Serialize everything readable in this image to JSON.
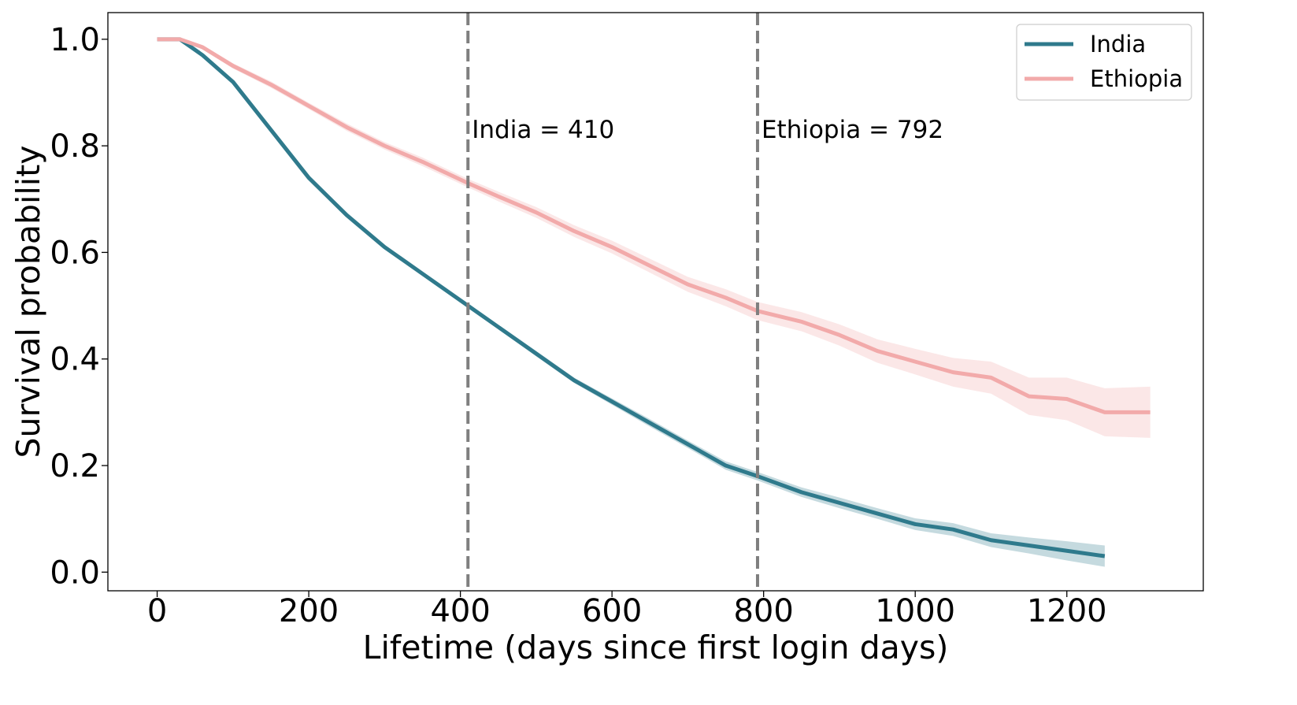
{
  "chart_data": {
    "type": "line",
    "title": "",
    "xlabel": "Lifetime (days since first login days)",
    "ylabel": "Survival probability",
    "xlim": [
      -65,
      1380
    ],
    "ylim": [
      -0.035,
      1.05
    ],
    "xticks": [
      0,
      200,
      400,
      600,
      800,
      1000,
      1200
    ],
    "yticks": [
      0.0,
      0.2,
      0.4,
      0.6,
      0.8,
      1.0
    ],
    "xtick_labels": [
      "0",
      "200",
      "400",
      "600",
      "800",
      "1000",
      "1200"
    ],
    "ytick_labels": [
      "0.0",
      "0.2",
      "0.4",
      "0.6",
      "0.8",
      "1.0"
    ],
    "grid": false,
    "legend_position": "top-right",
    "series": [
      {
        "name": "India",
        "color": "#2f7a8c",
        "band_color": "#2f7a8c",
        "x": [
          0,
          30,
          60,
          100,
          150,
          200,
          250,
          300,
          350,
          410,
          450,
          500,
          550,
          600,
          650,
          700,
          750,
          792,
          850,
          900,
          950,
          1000,
          1050,
          1100,
          1150,
          1200,
          1250
        ],
        "y": [
          1.0,
          1.0,
          0.97,
          0.92,
          0.83,
          0.74,
          0.67,
          0.61,
          0.56,
          0.5,
          0.46,
          0.41,
          0.36,
          0.32,
          0.28,
          0.24,
          0.2,
          0.18,
          0.15,
          0.13,
          0.11,
          0.09,
          0.08,
          0.06,
          0.05,
          0.04,
          0.03
        ],
        "ci_width": [
          0,
          0,
          0.003,
          0.004,
          0.004,
          0.004,
          0.004,
          0.004,
          0.004,
          0.004,
          0.004,
          0.005,
          0.005,
          0.006,
          0.007,
          0.007,
          0.008,
          0.008,
          0.009,
          0.01,
          0.01,
          0.011,
          0.012,
          0.013,
          0.015,
          0.018,
          0.02
        ]
      },
      {
        "name": "Ethiopia",
        "color": "#f2aaaa",
        "band_color": "#f2aaaa",
        "x": [
          0,
          30,
          60,
          100,
          150,
          200,
          250,
          300,
          350,
          410,
          450,
          500,
          550,
          600,
          650,
          700,
          750,
          792,
          850,
          900,
          950,
          1000,
          1050,
          1100,
          1150,
          1200,
          1250,
          1310
        ],
        "y": [
          1.0,
          1.0,
          0.985,
          0.95,
          0.915,
          0.875,
          0.835,
          0.8,
          0.77,
          0.73,
          0.705,
          0.675,
          0.64,
          0.61,
          0.575,
          0.54,
          0.515,
          0.49,
          0.47,
          0.445,
          0.415,
          0.395,
          0.375,
          0.365,
          0.33,
          0.325,
          0.3,
          0.3
        ],
        "ci_width": [
          0,
          0,
          0.004,
          0.005,
          0.006,
          0.006,
          0.007,
          0.007,
          0.008,
          0.008,
          0.009,
          0.01,
          0.011,
          0.012,
          0.013,
          0.014,
          0.016,
          0.017,
          0.018,
          0.02,
          0.022,
          0.024,
          0.027,
          0.03,
          0.035,
          0.04,
          0.045,
          0.048
        ]
      }
    ],
    "vlines": [
      {
        "x": 410,
        "label": "India = 410",
        "color": "#7f7f7f",
        "label_y": 0.815
      },
      {
        "x": 792,
        "label": "Ethiopia = 792",
        "color": "#7f7f7f",
        "label_y": 0.815
      }
    ]
  }
}
